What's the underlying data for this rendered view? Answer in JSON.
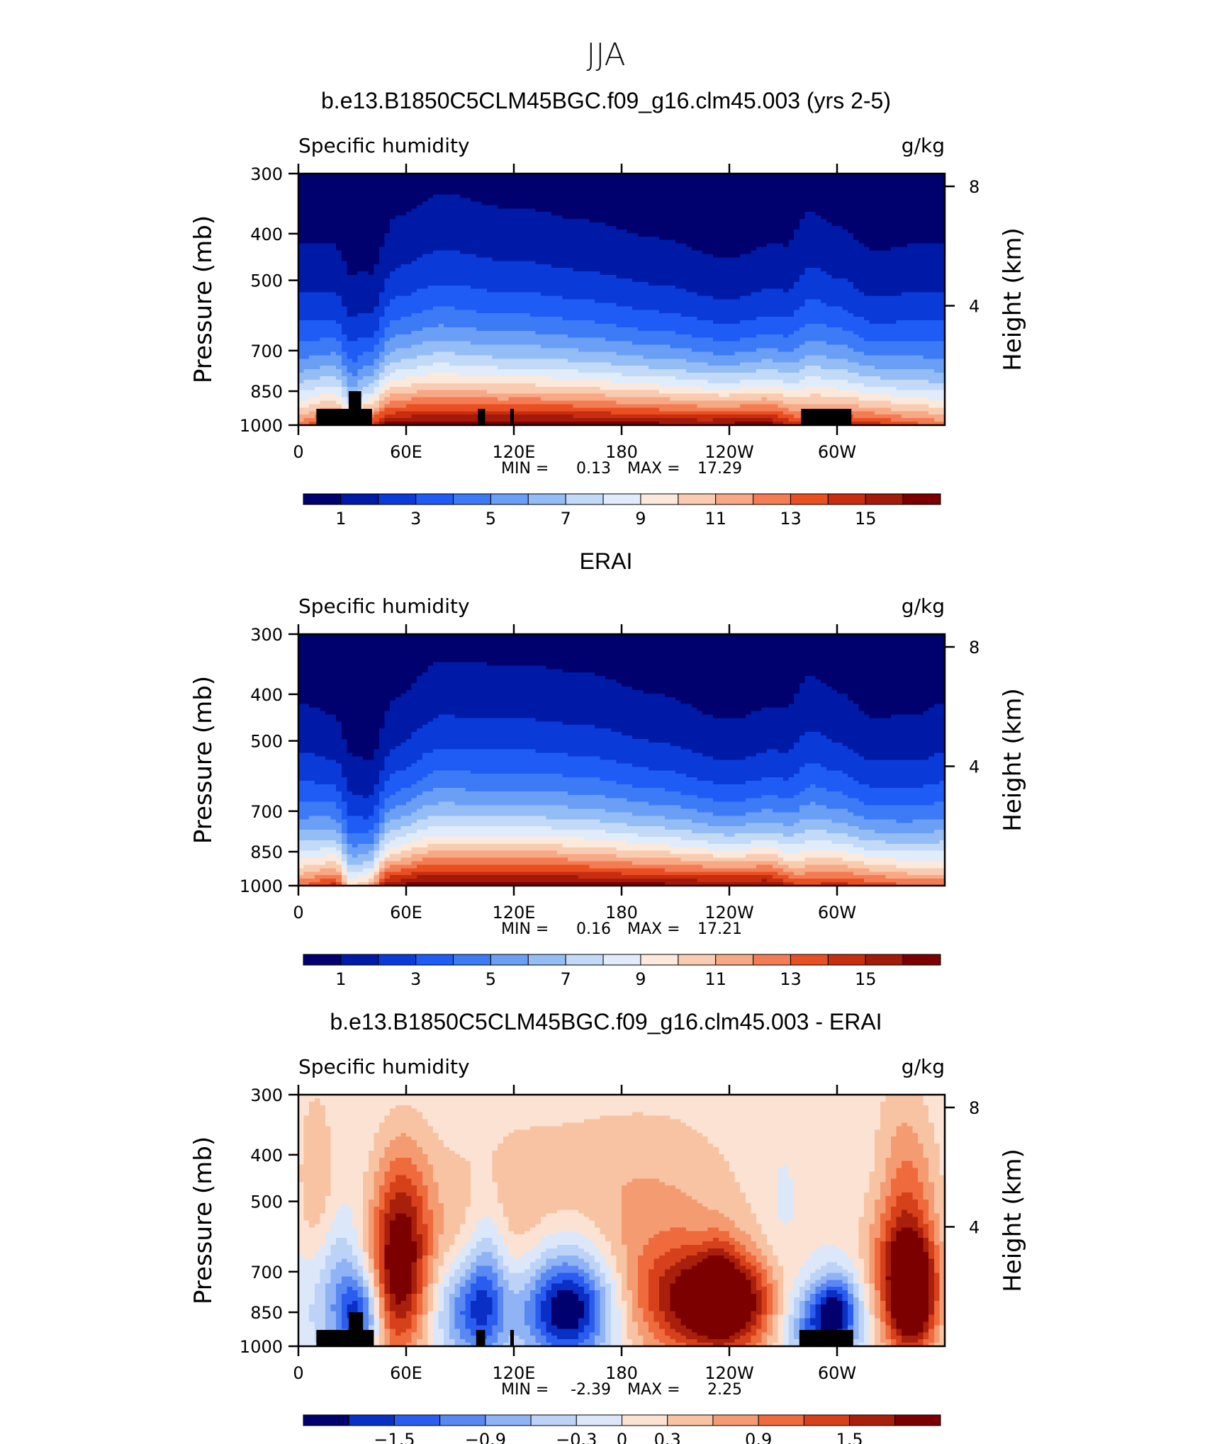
{
  "title": "JJA",
  "colors": {
    "seq_palette": [
      "#00006e",
      "#001aa8",
      "#0a3bd9",
      "#1f5cf5",
      "#3c7bf5",
      "#6a9ff5",
      "#95bdf5",
      "#c2d9f7",
      "#e1ecfa",
      "#fbe9dc",
      "#f9cbb0",
      "#f7a885",
      "#f47c54",
      "#ea4f22",
      "#c92d10",
      "#a3190a",
      "#7c0000"
    ],
    "diff_palette": [
      "#00006e",
      "#0a2fc4",
      "#2a5cf0",
      "#5a88f3",
      "#8fb3f5",
      "#bcd3f7",
      "#dce8fa",
      "#fbe2d3",
      "#f8c3a3",
      "#f59b72",
      "#ef6a3c",
      "#d6401a",
      "#a8200b",
      "#7c0000"
    ],
    "terrain": "#000000"
  },
  "panels": [
    {
      "key": "model",
      "title": "b.e13.B1850C5CLM45BGC.f09_g16.clm45.003 (yrs 2-5)",
      "variable": "Specific humidity",
      "units": "g/kg",
      "ylabel": "Pressure (mb)",
      "y2label": "Height (km)",
      "min_label": "MIN =",
      "min_value": "0.13",
      "max_label": "MAX =",
      "max_value": "17.29",
      "colorbar_ticks": [
        "1",
        "3",
        "5",
        "7",
        "9",
        "11",
        "13",
        "15"
      ]
    },
    {
      "key": "obs",
      "title": "ERAI",
      "variable": "Specific humidity",
      "units": "g/kg",
      "ylabel": "Pressure (mb)",
      "y2label": "Height (km)",
      "min_label": "MIN =",
      "min_value": "0.16",
      "max_label": "MAX =",
      "max_value": "17.21",
      "colorbar_ticks": [
        "1",
        "3",
        "5",
        "7",
        "9",
        "11",
        "13",
        "15"
      ]
    },
    {
      "key": "diff",
      "title": "b.e13.B1850C5CLM45BGC.f09_g16.clm45.003 - ERAI",
      "variable": "Specific humidity",
      "units": "g/kg",
      "ylabel": "Pressure (mb)",
      "y2label": "Height (km)",
      "min_label": "MIN =",
      "min_value": "-2.39",
      "max_label": "MAX =",
      "max_value": "2.25",
      "colorbar_ticks": [
        "−1.5",
        "−0.9",
        "−0.3",
        "0",
        "0.3",
        "0.9",
        "1.5"
      ]
    }
  ],
  "chart_data": [
    {
      "type": "heatmap",
      "title": "b.e13.B1850C5CLM45BGC.f09_g16.clm45.003 (yrs 2-5)",
      "xlabel": "",
      "ylabel": "Pressure (mb)",
      "y2label": "Height (km)",
      "x_ticks": [
        "0",
        "60E",
        "120E",
        "180",
        "120W",
        "60W"
      ],
      "x_tick_values": [
        0,
        60,
        120,
        180,
        240,
        300
      ],
      "xlim": [
        0,
        360
      ],
      "y_ticks": [
        "300",
        "400",
        "500",
        "700",
        "850",
        "1000"
      ],
      "y_tick_values": [
        300,
        400,
        500,
        700,
        850,
        1000
      ],
      "ylim": [
        1000,
        300
      ],
      "y2_ticks": [
        "4",
        "8"
      ],
      "y2_tick_values": [
        4,
        8
      ],
      "levels": [
        1,
        2,
        3,
        4,
        5,
        6,
        7,
        8,
        9,
        10,
        11,
        12,
        13,
        14,
        15,
        16
      ],
      "min": 0.13,
      "max": 17.29,
      "terrain": [
        {
          "lon": [
            10,
            41
          ],
          "p_top": 925
        },
        {
          "lon": [
            28,
            35
          ],
          "p_top": 850
        },
        {
          "lon": [
            100,
            104
          ],
          "p_top": 925
        },
        {
          "lon": [
            118,
            120
          ],
          "p_top": 925
        },
        {
          "lon": [
            280,
            308
          ],
          "p_top": 925
        }
      ]
    },
    {
      "type": "heatmap",
      "title": "ERAI",
      "xlabel": "",
      "ylabel": "Pressure (mb)",
      "y2label": "Height (km)",
      "x_ticks": [
        "0",
        "60E",
        "120E",
        "180",
        "120W",
        "60W"
      ],
      "x_tick_values": [
        0,
        60,
        120,
        180,
        240,
        300
      ],
      "xlim": [
        0,
        360
      ],
      "y_ticks": [
        "300",
        "400",
        "500",
        "700",
        "850",
        "1000"
      ],
      "y_tick_values": [
        300,
        400,
        500,
        700,
        850,
        1000
      ],
      "ylim": [
        1000,
        300
      ],
      "y2_ticks": [
        "4",
        "8"
      ],
      "y2_tick_values": [
        4,
        8
      ],
      "levels": [
        1,
        2,
        3,
        4,
        5,
        6,
        7,
        8,
        9,
        10,
        11,
        12,
        13,
        14,
        15,
        16
      ],
      "min": 0.16,
      "max": 17.21,
      "terrain": []
    },
    {
      "type": "heatmap",
      "title": "b.e13.B1850C5CLM45BGC.f09_g16.clm45.003 - ERAI",
      "xlabel": "",
      "ylabel": "Pressure (mb)",
      "y2label": "Height (km)",
      "x_ticks": [
        "0",
        "60E",
        "120E",
        "180",
        "120W",
        "60W"
      ],
      "x_tick_values": [
        0,
        60,
        120,
        180,
        240,
        300
      ],
      "xlim": [
        0,
        360
      ],
      "y_ticks": [
        "300",
        "400",
        "500",
        "700",
        "850",
        "1000"
      ],
      "y_tick_values": [
        300,
        400,
        500,
        700,
        850,
        1000
      ],
      "ylim": [
        1000,
        300
      ],
      "y2_ticks": [
        "4",
        "8"
      ],
      "y2_tick_values": [
        4,
        8
      ],
      "levels": [
        -1.8,
        -1.5,
        -1.2,
        -0.9,
        -0.6,
        -0.3,
        0,
        0.3,
        0.6,
        0.9,
        1.2,
        1.5,
        1.8
      ],
      "min": -2.39,
      "max": 2.25,
      "terrain": [
        {
          "lon": [
            10,
            42
          ],
          "p_top": 925
        },
        {
          "lon": [
            28,
            36
          ],
          "p_top": 850
        },
        {
          "lon": [
            99,
            104
          ],
          "p_top": 925
        },
        {
          "lon": [
            118,
            120
          ],
          "p_top": 925
        },
        {
          "lon": [
            279,
            309
          ],
          "p_top": 925
        }
      ]
    }
  ]
}
